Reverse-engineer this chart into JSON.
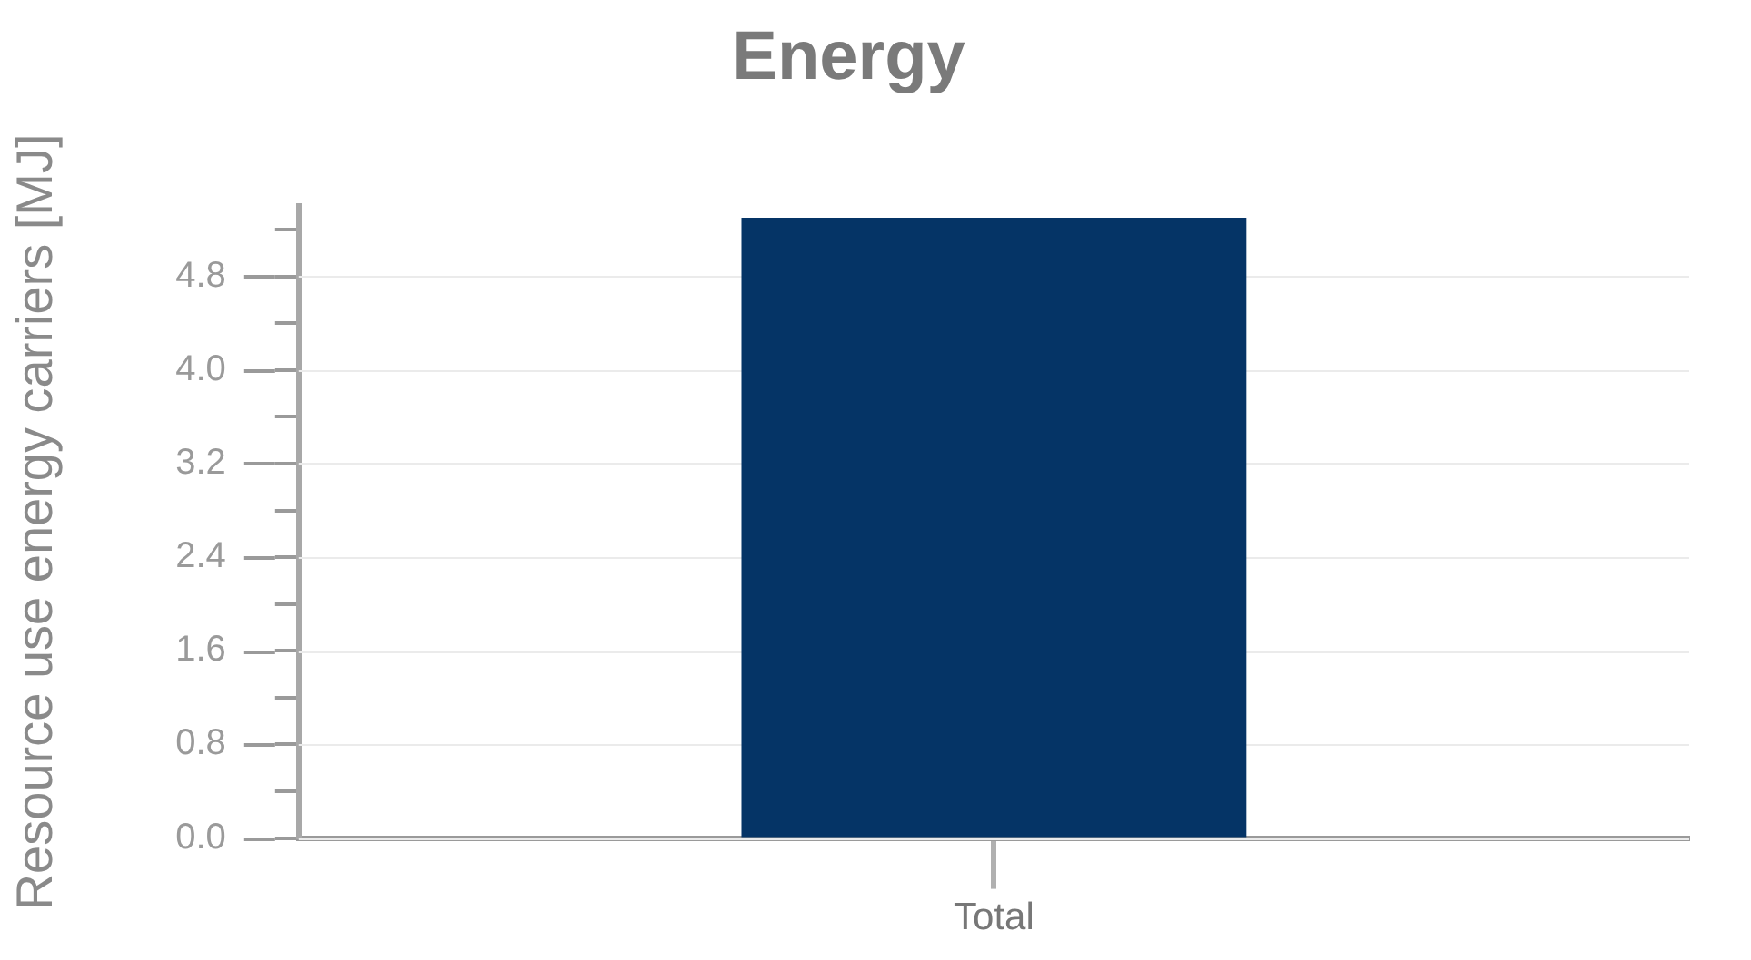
{
  "chart_data": {
    "type": "bar",
    "title": "Energy",
    "ylabel": "Resource use energy carriers [MJ]",
    "categories": [
      "Total"
    ],
    "values": [
      5.3
    ],
    "color": "#053466",
    "ylim": [
      0,
      5.4
    ],
    "yticks": [
      {
        "value": 0,
        "label": "0.0"
      },
      {
        "value": 0.4,
        "label": null
      },
      0.8,
      {
        "value": 1.2,
        "label": null
      },
      1.6,
      {
        "value": 2,
        "label": null
      },
      2.4,
      {
        "value": 2.8,
        "label": null
      },
      3.2,
      {
        "value": 3.6,
        "label": null
      },
      {
        "value": 4,
        "label": "4.0"
      },
      {
        "value": 4.4,
        "label": null
      },
      4.8,
      {
        "value": 5.2,
        "label": null
      }
    ],
    "grid": "y"
  }
}
